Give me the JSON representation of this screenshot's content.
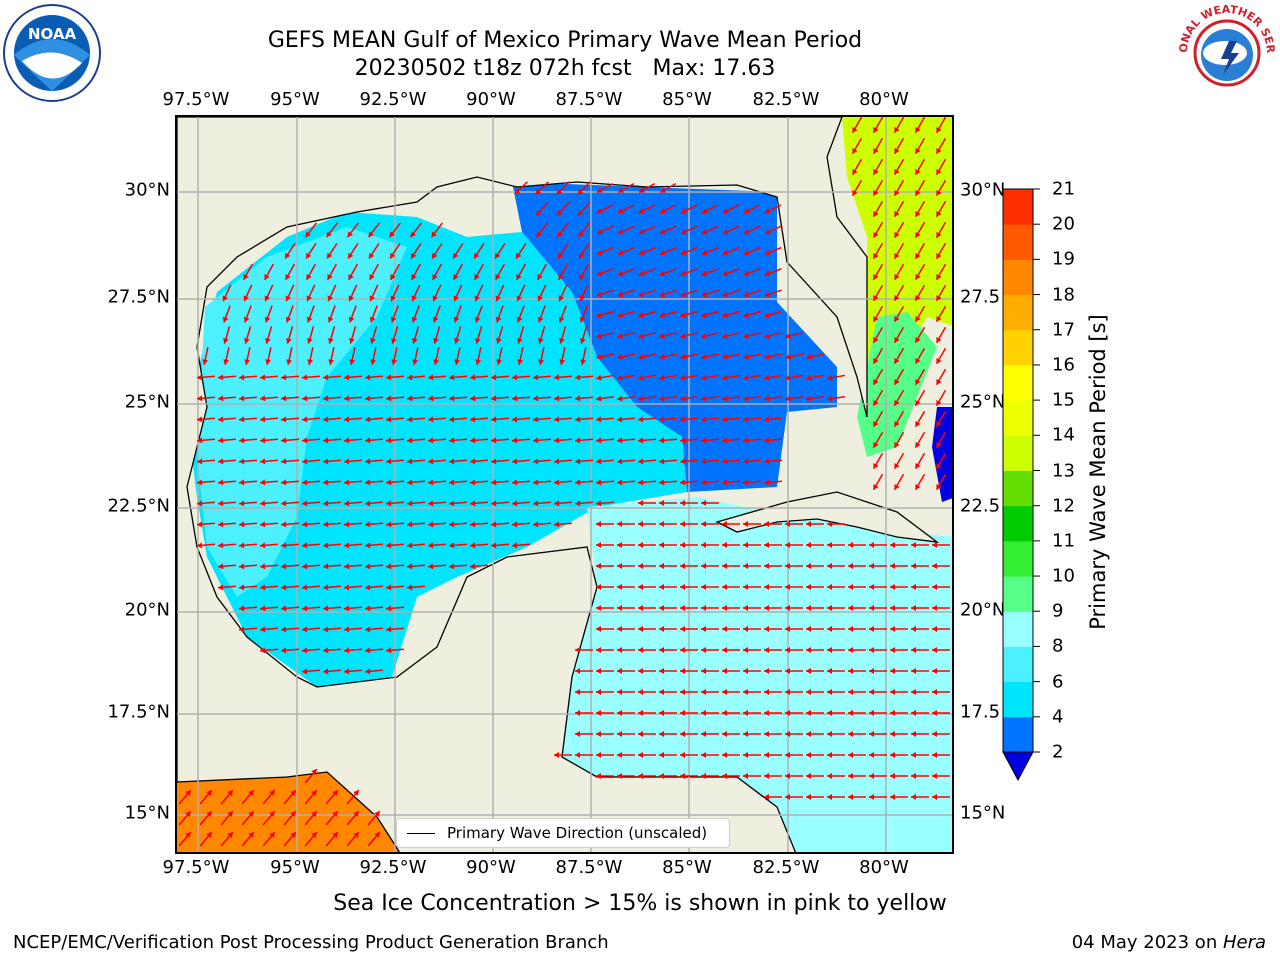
{
  "title": {
    "line1": "GEFS MEAN Gulf of Mexico Primary Wave Mean Period",
    "line2": "20230502 t18z 072h fcst   Max: 17.63"
  },
  "axes": {
    "lon_labels": [
      "97.5°W",
      "95°W",
      "92.5°W",
      "90°W",
      "87.5°W",
      "85°W",
      "82.5°W",
      "80°W"
    ],
    "lat_labels": [
      "30°N",
      "27.5°N",
      "25°N",
      "22.5°N",
      "20°N",
      "17.5°N",
      "15°N"
    ],
    "lat_labels_right": [
      "30°N",
      "27.5",
      "25°N",
      "22.5",
      "20°N",
      "17.5",
      "15°N"
    ]
  },
  "legend": {
    "entry": "Primary Wave Direction (unscaled)"
  },
  "colorbar": {
    "title": "Primary Wave Mean Period [s]",
    "levels": [
      "2",
      "4",
      "6",
      "8",
      "9",
      "10",
      "11",
      "12",
      "13",
      "14",
      "15",
      "16",
      "17",
      "18",
      "19",
      "20",
      "21"
    ],
    "colors": [
      "#0073ff",
      "#00e5ff",
      "#4df0ff",
      "#99ffff",
      "#55ff88",
      "#33ee33",
      "#00cc00",
      "#66dd00",
      "#ccff00",
      "#eeff00",
      "#ffff00",
      "#ffd200",
      "#ffad00",
      "#ff8800",
      "#ff5a00",
      "#ff2d00"
    ],
    "under_color": "#0000e0"
  },
  "footnote": "Sea Ice Concentration > 15% is shown in pink to yellow",
  "credit": "NCEP/EMC/Verification Post Processing Product Generation Branch",
  "date": {
    "text": "04 May 2023 on ",
    "system": "Hera"
  },
  "colors": {
    "land": "#efefdf",
    "grid": "#b0b0b0",
    "arrow": "#ff0000",
    "deep_blue": "#0073ff",
    "cyan": "#00e5ff",
    "light_cyan": "#99ffff",
    "orange": "#ff8800",
    "yellow_green": "#ccff00"
  },
  "logos": {
    "left": "NOAA",
    "right": "NATIONAL WEATHER SERVICE"
  }
}
